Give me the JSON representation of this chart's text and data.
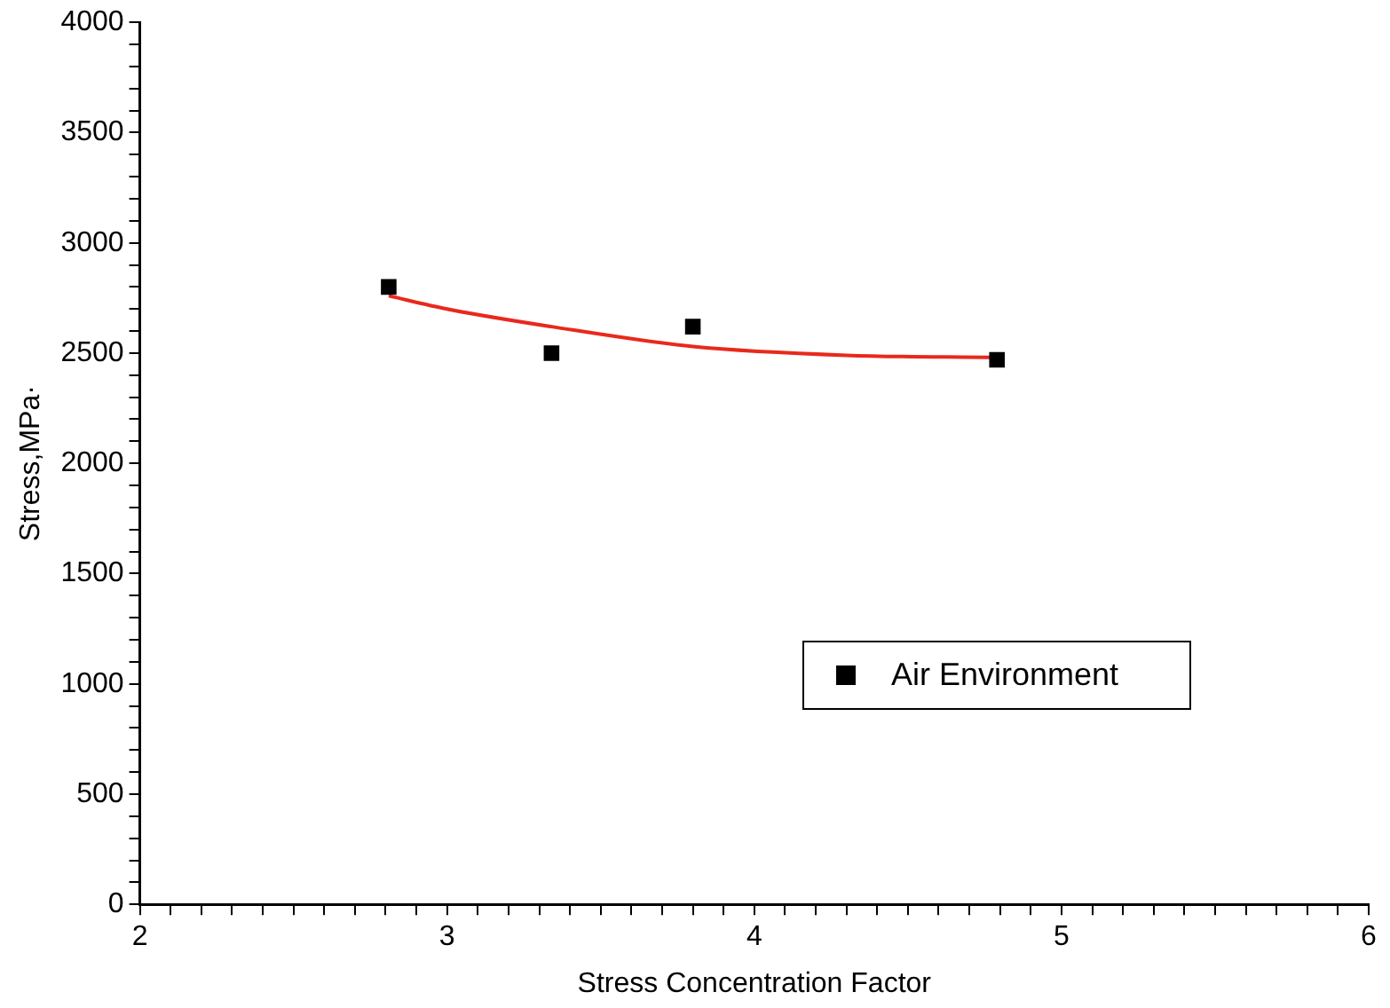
{
  "chart_data": {
    "type": "scatter",
    "xlabel": "Stress Concentration Factor",
    "ylabel": "Stress,MPa·",
    "xlim": [
      2,
      6
    ],
    "ylim": [
      0,
      4000
    ],
    "xticks": [
      2,
      {
        "value": 2.1,
        "label": null
      },
      {
        "value": 2.2,
        "label": null
      },
      {
        "value": 2.3,
        "label": null
      },
      {
        "value": 2.4,
        "label": null
      },
      {
        "value": 2.5,
        "label": null
      },
      {
        "value": 2.6,
        "label": null
      },
      {
        "value": 2.7,
        "label": null
      },
      {
        "value": 2.8,
        "label": null
      },
      {
        "value": 2.9,
        "label": null
      },
      3,
      {
        "value": 3.1,
        "label": null
      },
      {
        "value": 3.2,
        "label": null
      },
      {
        "value": 3.3,
        "label": null
      },
      {
        "value": 3.4,
        "label": null
      },
      {
        "value": 3.5,
        "label": null
      },
      {
        "value": 3.6,
        "label": null
      },
      {
        "value": 3.7,
        "label": null
      },
      {
        "value": 3.8,
        "label": null
      },
      {
        "value": 3.9,
        "label": null
      },
      4,
      {
        "value": 4.1,
        "label": null
      },
      {
        "value": 4.2,
        "label": null
      },
      {
        "value": 4.3,
        "label": null
      },
      {
        "value": 4.4,
        "label": null
      },
      {
        "value": 4.5,
        "label": null
      },
      {
        "value": 4.6,
        "label": null
      },
      {
        "value": 4.7,
        "label": null
      },
      {
        "value": 4.8,
        "label": null
      },
      {
        "value": 4.9,
        "label": null
      },
      5,
      {
        "value": 5.1,
        "label": null
      },
      {
        "value": 5.2,
        "label": null
      },
      {
        "value": 5.3,
        "label": null
      },
      {
        "value": 5.4,
        "label": null
      },
      {
        "value": 5.5,
        "label": null
      },
      {
        "value": 5.6,
        "label": null
      },
      {
        "value": 5.7,
        "label": null
      },
      {
        "value": 5.8,
        "label": null
      },
      {
        "value": 5.9,
        "label": null
      },
      6
    ],
    "yticks": [
      0,
      {
        "value": 100,
        "label": null
      },
      {
        "value": 200,
        "label": null
      },
      {
        "value": 300,
        "label": null
      },
      {
        "value": 400,
        "label": null
      },
      500,
      {
        "value": 600,
        "label": null
      },
      {
        "value": 700,
        "label": null
      },
      {
        "value": 800,
        "label": null
      },
      {
        "value": 900,
        "label": null
      },
      1000,
      {
        "value": 1100,
        "label": null
      },
      {
        "value": 1200,
        "label": null
      },
      {
        "value": 1300,
        "label": null
      },
      {
        "value": 1400,
        "label": null
      },
      1500,
      {
        "value": 1600,
        "label": null
      },
      {
        "value": 1700,
        "label": null
      },
      {
        "value": 1800,
        "label": null
      },
      {
        "value": 1900,
        "label": null
      },
      2000,
      {
        "value": 2100,
        "label": null
      },
      {
        "value": 2200,
        "label": null
      },
      {
        "value": 2300,
        "label": null
      },
      {
        "value": 2400,
        "label": null
      },
      2500,
      {
        "value": 2600,
        "label": null
      },
      {
        "value": 2700,
        "label": null
      },
      {
        "value": 2800,
        "label": null
      },
      {
        "value": 2900,
        "label": null
      },
      3000,
      {
        "value": 3100,
        "label": null
      },
      {
        "value": 3200,
        "label": null
      },
      {
        "value": 3300,
        "label": null
      },
      {
        "value": 3400,
        "label": null
      },
      3500,
      {
        "value": 3600,
        "label": null
      },
      {
        "value": 3700,
        "label": null
      },
      {
        "value": 3800,
        "label": null
      },
      {
        "value": 3900,
        "label": null
      },
      4000
    ],
    "grid": false,
    "legend": "bottom right",
    "marker": "square",
    "series": [
      {
        "name": "Air Environment",
        "type": "scatter",
        "color": "#000000",
        "x": [
          2.81,
          3.34,
          3.8,
          4.79
        ],
        "values": [
          2800,
          2500,
          2620,
          2470
        ]
      },
      {
        "type": "line",
        "color": "#e8291c",
        "line_style": "solid",
        "marker": "none",
        "x": [
          2.81,
          3.0,
          3.34,
          3.8,
          4.3,
          4.79
        ],
        "values": [
          2760,
          2700,
          2620,
          2530,
          2490,
          2480
        ]
      }
    ]
  }
}
